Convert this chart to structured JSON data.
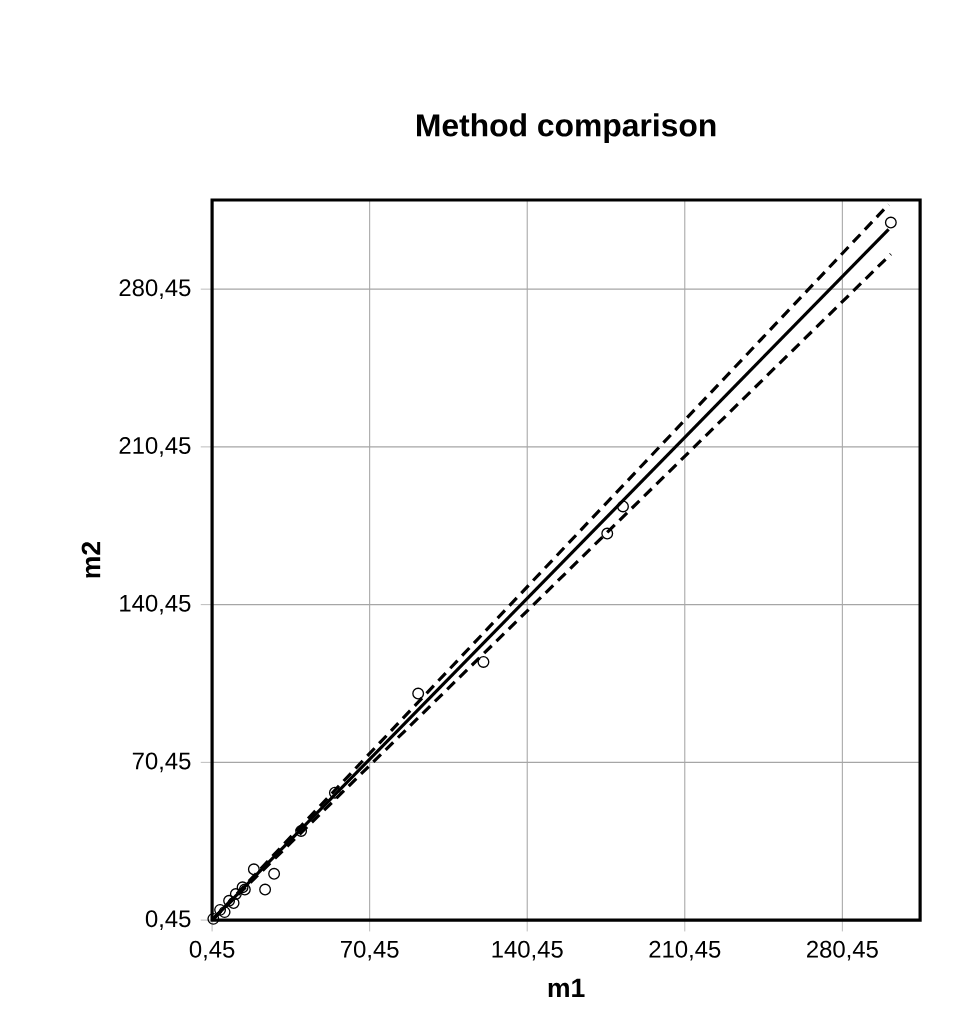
{
  "chart_data": {
    "type": "scatter",
    "title": "Method comparison",
    "xlabel": "m1",
    "ylabel": "m2",
    "xlim": [
      0.45,
      315
    ],
    "ylim": [
      0.45,
      320
    ],
    "xticks": [
      {
        "value": 0.45,
        "label": "0,45"
      },
      {
        "value": 70.45,
        "label": "70,45"
      },
      {
        "value": 140.45,
        "label": "140,45"
      },
      {
        "value": 210.45,
        "label": "210,45"
      },
      {
        "value": 280.45,
        "label": "280,45"
      }
    ],
    "yticks": [
      {
        "value": 0.45,
        "label": "0,45"
      },
      {
        "value": 70.45,
        "label": "70,45"
      },
      {
        "value": 140.45,
        "label": "140,45"
      },
      {
        "value": 210.45,
        "label": "210,45"
      },
      {
        "value": 280.45,
        "label": "280,45"
      }
    ],
    "grid": true,
    "series": [
      {
        "type": "line",
        "color": "#000000",
        "line_style": "dashed",
        "marker": "none",
        "x": [
          1,
          301
        ],
        "values": [
          1,
          318
        ]
      },
      {
        "type": "line",
        "color": "#000000",
        "line_style": "dashed",
        "marker": "none",
        "x": [
          1,
          302
        ],
        "values": [
          1,
          296
        ]
      },
      {
        "type": "line",
        "color": "#000000",
        "line_style": "solid",
        "marker": "none",
        "x": [
          1,
          301
        ],
        "values": [
          1,
          307
        ]
      },
      {
        "color": "#000000",
        "marker": "circle",
        "x": [
          302,
          183,
          176,
          92,
          121,
          19,
          28,
          24,
          40,
          14,
          11,
          55,
          8,
          4,
          6,
          1,
          10,
          15
        ],
        "values": [
          310,
          184,
          172,
          101,
          115,
          23,
          21,
          14,
          40,
          15,
          12,
          57,
          9,
          5,
          4,
          1,
          8,
          14
        ]
      }
    ]
  }
}
